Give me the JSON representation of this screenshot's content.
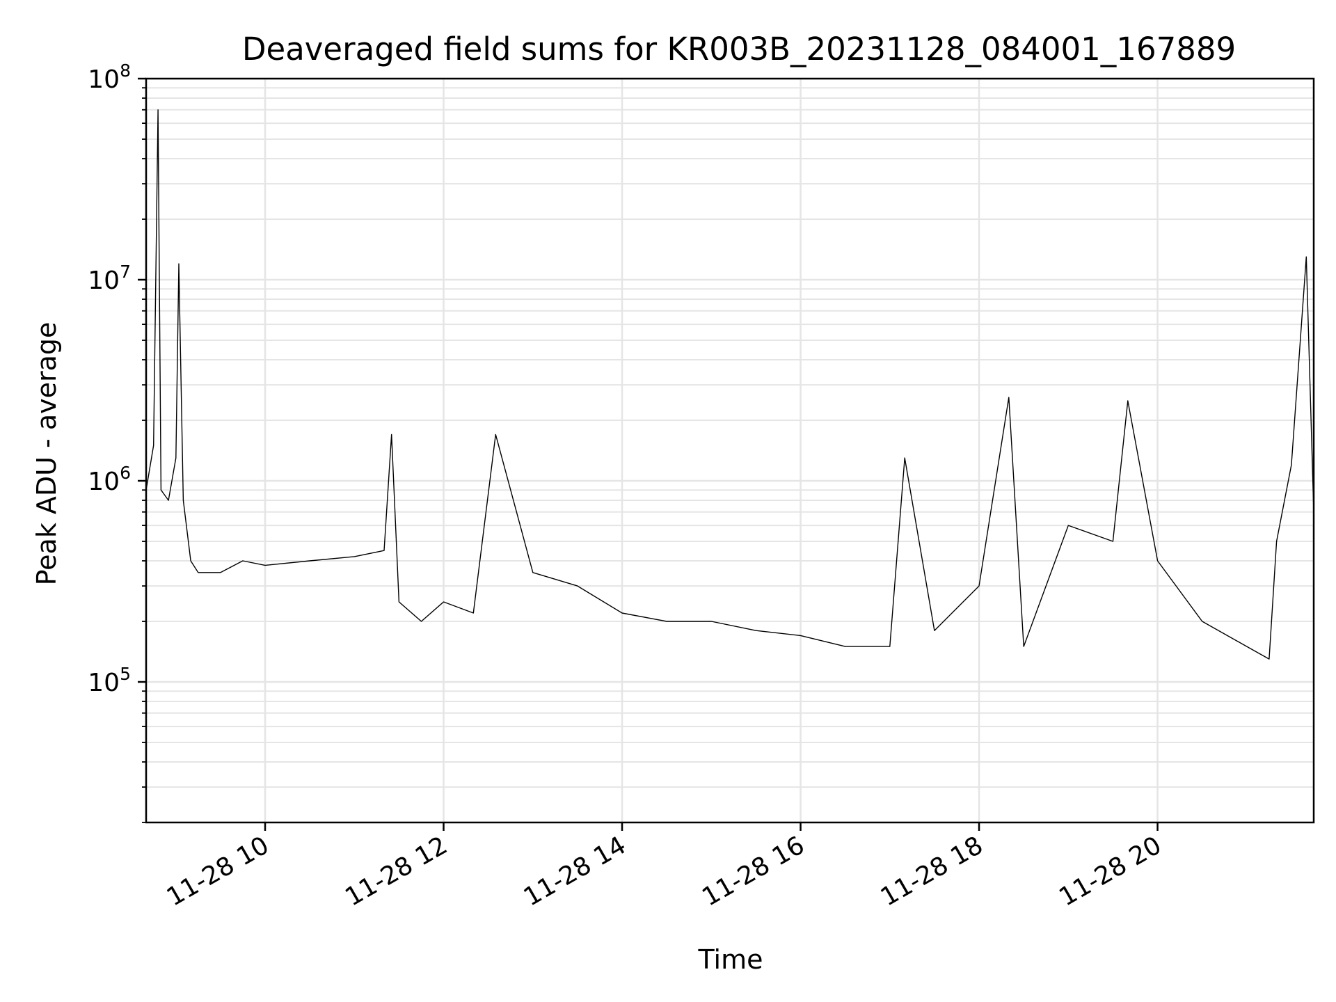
{
  "chart_data": {
    "type": "line",
    "title": "Deaveraged field sums for KR003B_20231128_084001_167889",
    "xlabel": "Time",
    "ylabel": "Peak ADU - average",
    "yscale": "log",
    "ylim": [
      20000,
      100000000
    ],
    "xlim": [
      "2023-11-28 08:40",
      "2023-11-28 21:45"
    ],
    "x_ticks": [
      "2023-11-28 10:00",
      "2023-11-28 12:00",
      "2023-11-28 14:00",
      "2023-11-28 16:00",
      "2023-11-28 18:00",
      "2023-11-28 20:00"
    ],
    "x_tick_labels": [
      "11-28 10",
      "11-28 12",
      "11-28 14",
      "11-28 16",
      "11-28 18",
      "11-28 20"
    ],
    "y_ticks": [
      100000,
      1000000,
      10000000,
      100000000
    ],
    "y_tick_labels": [
      {
        "base": "10",
        "exp": "5"
      },
      {
        "base": "10",
        "exp": "6"
      },
      {
        "base": "10",
        "exp": "7"
      },
      {
        "base": "10",
        "exp": "8"
      }
    ],
    "grid": true,
    "line_color": "#000000",
    "grid_color": "#e5e5e5",
    "series": [
      {
        "x": [
          "2023-11-28 08:40",
          "2023-11-28 08:45",
          "2023-11-28 08:48",
          "2023-11-28 08:50",
          "2023-11-28 08:55",
          "2023-11-28 09:00",
          "2023-11-28 09:02",
          "2023-11-28 09:05",
          "2023-11-28 09:10",
          "2023-11-28 09:15",
          "2023-11-28 09:30",
          "2023-11-28 09:45",
          "2023-11-28 10:00",
          "2023-11-28 10:30",
          "2023-11-28 11:00",
          "2023-11-28 11:20",
          "2023-11-28 11:25",
          "2023-11-28 11:30",
          "2023-11-28 11:45",
          "2023-11-28 12:00",
          "2023-11-28 12:20",
          "2023-11-28 12:35",
          "2023-11-28 13:00",
          "2023-11-28 13:30",
          "2023-11-28 14:00",
          "2023-11-28 14:30",
          "2023-11-28 15:00",
          "2023-11-28 15:30",
          "2023-11-28 16:00",
          "2023-11-28 16:30",
          "2023-11-28 17:00",
          "2023-11-28 17:10",
          "2023-11-28 17:30",
          "2023-11-28 18:00",
          "2023-11-28 18:20",
          "2023-11-28 18:30",
          "2023-11-28 19:00",
          "2023-11-28 19:30",
          "2023-11-28 19:40",
          "2023-11-28 20:00",
          "2023-11-28 20:30",
          "2023-11-28 21:00",
          "2023-11-28 21:15",
          "2023-11-28 21:20",
          "2023-11-28 21:30",
          "2023-11-28 21:40",
          "2023-11-28 21:45"
        ],
        "y": [
          900000,
          1500000,
          70000000,
          900000,
          800000,
          1300000,
          12000000,
          800000,
          400000,
          350000,
          350000,
          400000,
          380000,
          400000,
          420000,
          450000,
          1700000,
          250000,
          200000,
          250000,
          220000,
          1700000,
          350000,
          300000,
          220000,
          200000,
          200000,
          180000,
          170000,
          150000,
          150000,
          1300000,
          180000,
          300000,
          2600000,
          150000,
          600000,
          500000,
          2500000,
          400000,
          200000,
          150000,
          130000,
          500000,
          1200000,
          13000000,
          700000
        ]
      }
    ]
  }
}
